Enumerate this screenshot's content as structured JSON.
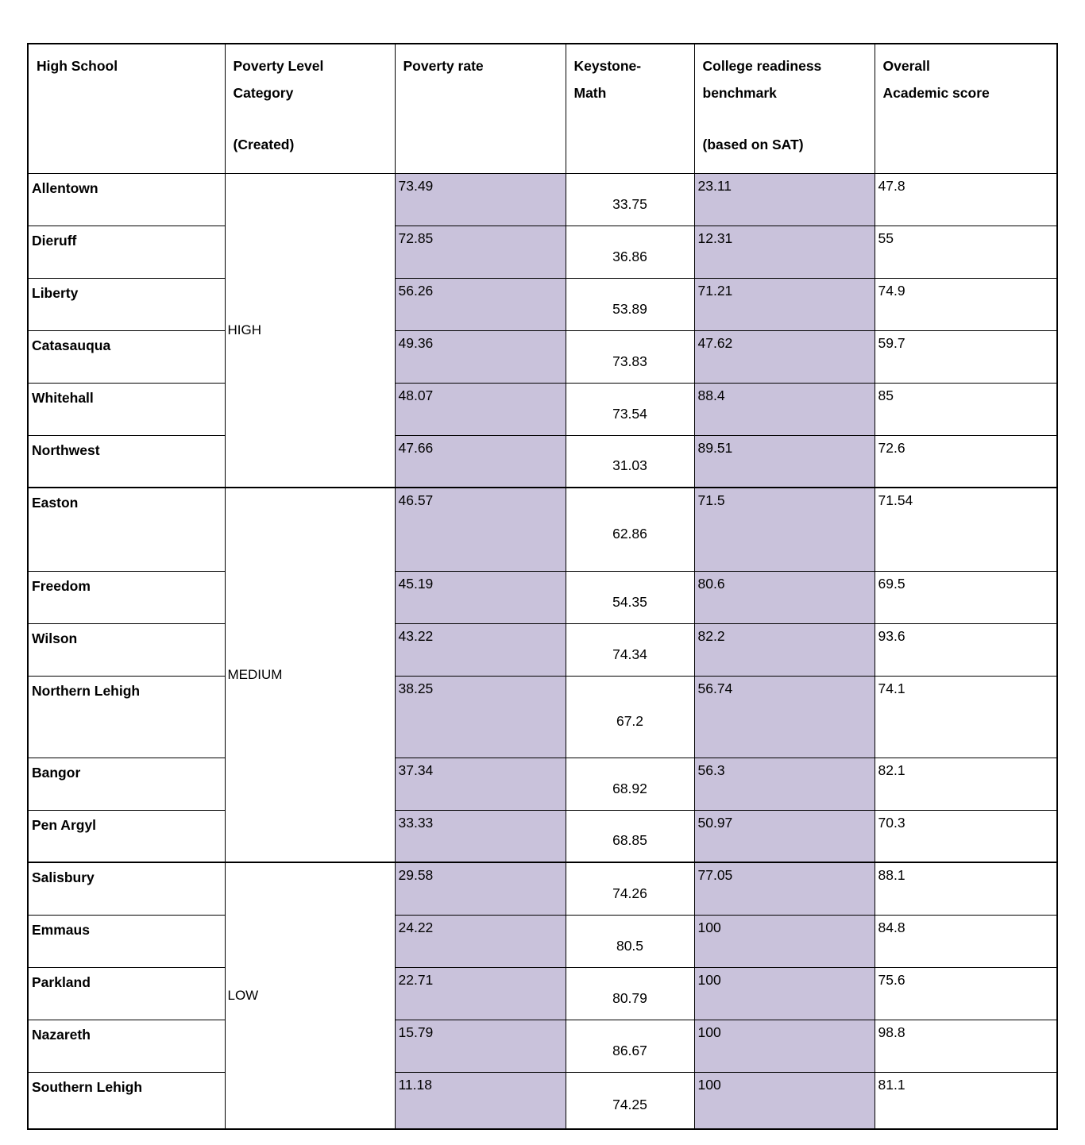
{
  "table": {
    "columns": [
      {
        "key": "school",
        "label_lines": [
          "High School"
        ],
        "sublabel": ""
      },
      {
        "key": "category",
        "label_lines": [
          "Poverty Level",
          "Category"
        ],
        "sublabel": "(Created)"
      },
      {
        "key": "poverty_rate",
        "label_lines": [
          "Poverty rate"
        ],
        "sublabel": ""
      },
      {
        "key": "keystone_math",
        "label_lines": [
          "Keystone-",
          "Math"
        ],
        "sublabel": ""
      },
      {
        "key": "college_readiness",
        "label_lines": [
          "College readiness",
          "benchmark"
        ],
        "sublabel": "(based on SAT)"
      },
      {
        "key": "overall_score",
        "label_lines": [
          "Overall",
          "Academic score"
        ],
        "sublabel": ""
      }
    ],
    "groups": [
      {
        "category": "HIGH",
        "rows": [
          {
            "school": "Allentown",
            "poverty_rate": "73.49",
            "keystone_math": "33.75",
            "college_readiness": "23.11",
            "overall_score": "47.8"
          },
          {
            "school": "Dieruff",
            "poverty_rate": "72.85",
            "keystone_math": "36.86",
            "college_readiness": "12.31",
            "overall_score": "55"
          },
          {
            "school": "Liberty",
            "poverty_rate": "56.26",
            "keystone_math": "53.89",
            "college_readiness": "71.21",
            "overall_score": "74.9"
          },
          {
            "school": "Catasauqua",
            "poverty_rate": "49.36",
            "keystone_math": "73.83",
            "college_readiness": "47.62",
            "overall_score": "59.7"
          },
          {
            "school": "Whitehall",
            "poverty_rate": "48.07",
            "keystone_math": "73.54",
            "college_readiness": "88.4",
            "overall_score": "85"
          },
          {
            "school": "Northwest",
            "poverty_rate": "47.66",
            "keystone_math": "31.03",
            "college_readiness": "89.51",
            "overall_score": "72.6"
          }
        ]
      },
      {
        "category": "MEDIUM",
        "rows": [
          {
            "school": "Easton",
            "poverty_rate": "46.57",
            "keystone_math": "62.86",
            "college_readiness": "71.5",
            "overall_score": "71.54"
          },
          {
            "school": "Freedom",
            "poverty_rate": "45.19",
            "keystone_math": "54.35",
            "college_readiness": "80.6",
            "overall_score": "69.5"
          },
          {
            "school": "Wilson",
            "poverty_rate": "43.22",
            "keystone_math": "74.34",
            "college_readiness": "82.2",
            "overall_score": "93.6"
          },
          {
            "school": "Northern Lehigh",
            "poverty_rate": "38.25",
            "keystone_math": "67.2",
            "college_readiness": "56.74",
            "overall_score": "74.1"
          },
          {
            "school": "Bangor",
            "poverty_rate": "37.34",
            "keystone_math": "68.92",
            "college_readiness": "56.3",
            "overall_score": "82.1"
          },
          {
            "school": "Pen Argyl",
            "poverty_rate": "33.33",
            "keystone_math": "68.85",
            "college_readiness": "50.97",
            "overall_score": "70.3"
          }
        ]
      },
      {
        "category": "LOW",
        "rows": [
          {
            "school": "Salisbury",
            "poverty_rate": "29.58",
            "keystone_math": "74.26",
            "college_readiness": "77.05",
            "overall_score": "88.1"
          },
          {
            "school": "Emmaus",
            "poverty_rate": "24.22",
            "keystone_math": "80.5",
            "college_readiness": "100",
            "overall_score": "84.8"
          },
          {
            "school": "Parkland",
            "poverty_rate": "22.71",
            "keystone_math": "80.79",
            "college_readiness": "100",
            "overall_score": "75.6"
          },
          {
            "school": "Nazareth",
            "poverty_rate": "15.79",
            "keystone_math": "86.67",
            "college_readiness": "100",
            "overall_score": "98.8"
          },
          {
            "school": "Southern Lehigh",
            "poverty_rate": "11.18",
            "keystone_math": "74.25",
            "college_readiness": "100",
            "overall_score": "81.1"
          }
        ]
      }
    ]
  },
  "colors": {
    "highlight": "#c9c2db",
    "border": "#000000",
    "background": "#ffffff"
  }
}
